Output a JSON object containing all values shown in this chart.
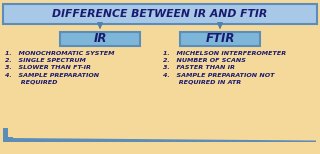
{
  "title": "DIFFERENCE BETWEEN IR AND FTIR",
  "ir_label": "IR",
  "ftir_label": "FTIR",
  "ir_points": [
    "1.   MONOCHROMATIC SYSTEM",
    "2.   SINGLE SPECTRUM",
    "3.   SLOWER THAN FT-IR",
    "4.   SAMPLE PREPARATION",
    "       REQUIRED"
  ],
  "ftir_points": [
    "1.   MICHELSON INTERFEROMETER",
    "2.   NUMBER OF SCANS",
    "3.   FASTER THAN IR",
    "4.   SAMPLE PREPARATION NOT",
    "       REQUIRED IN ATR"
  ],
  "bg_color": "#F5D99A",
  "title_box_facecolor": "#A8C8E8",
  "title_box_edgecolor": "#5B8DB8",
  "sub_box_facecolor": "#7EB6D9",
  "sub_box_edgecolor": "#5B8DB8",
  "text_color": "#1a1a6e",
  "arrow_color": "#5080B0",
  "bar_color": "#5B8DB8",
  "title_fontsize": 7.8,
  "sub_fontsize": 8.5,
  "body_fontsize": 4.6
}
